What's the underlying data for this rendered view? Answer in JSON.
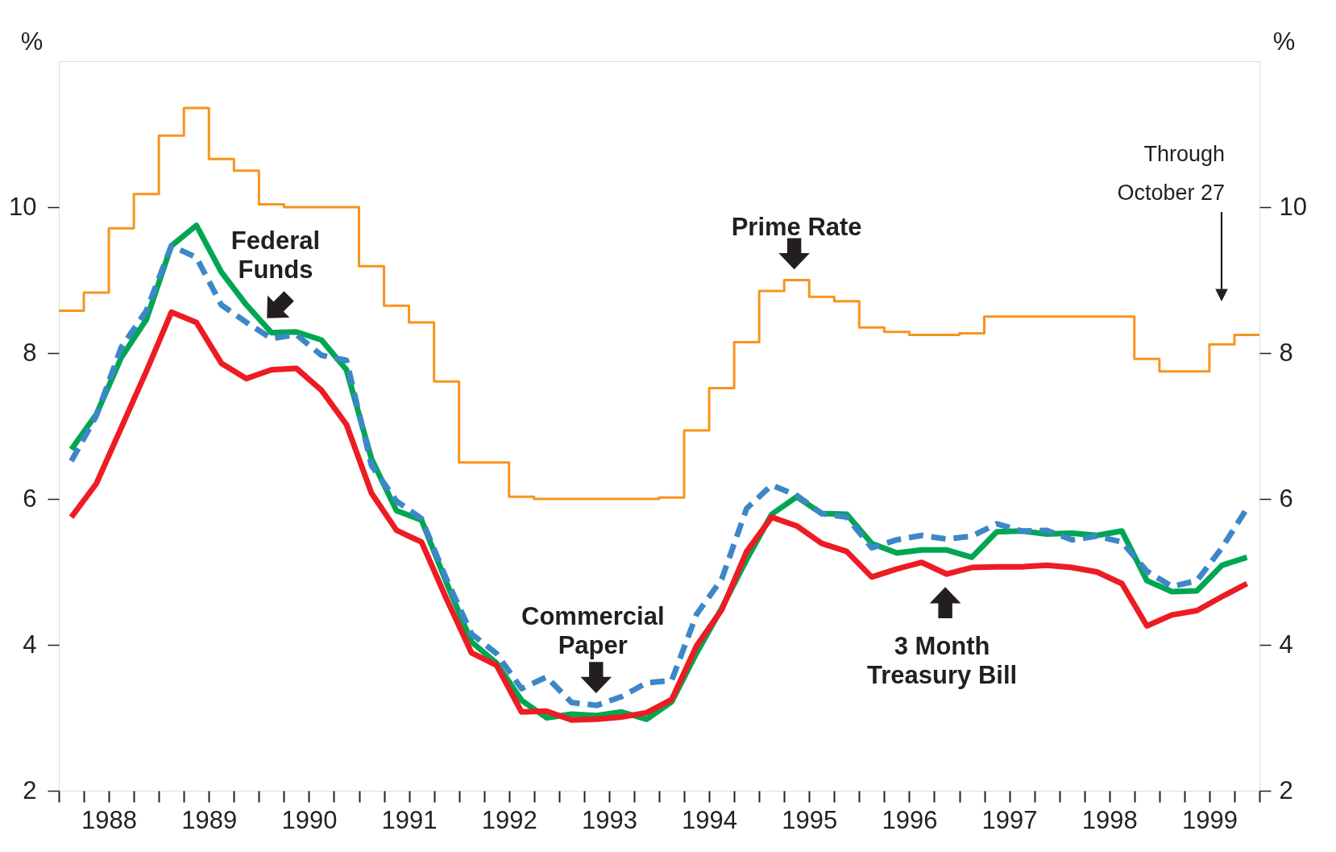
{
  "chart_data": {
    "type": "line",
    "x": [
      1988.125,
      1988.375,
      1988.625,
      1988.875,
      1989.125,
      1989.375,
      1989.625,
      1989.875,
      1990.125,
      1990.375,
      1990.625,
      1990.875,
      1991.125,
      1991.375,
      1991.625,
      1991.875,
      1992.125,
      1992.375,
      1992.625,
      1992.875,
      1993.125,
      1993.375,
      1993.625,
      1993.875,
      1994.125,
      1994.375,
      1994.625,
      1994.875,
      1995.125,
      1995.375,
      1995.625,
      1995.875,
      1996.125,
      1996.375,
      1996.625,
      1996.875,
      1997.125,
      1997.375,
      1997.625,
      1997.875,
      1998.125,
      1998.375,
      1998.625,
      1998.875,
      1999.125,
      1999.375,
      1999.625,
      1999.875
    ],
    "series": [
      {
        "type": "step",
        "color": "#f7941d",
        "x": [
          1988,
          1988.25,
          1988.5,
          1988.75,
          1989,
          1989.25,
          1989.5,
          1989.75,
          1990,
          1990.25,
          1990.5,
          1990.75,
          1991,
          1991.25,
          1991.5,
          1991.75,
          1992,
          1992.25,
          1992.5,
          1992.75,
          1993,
          1993.25,
          1993.5,
          1993.75,
          1994,
          1994.25,
          1994.5,
          1994.75,
          1995,
          1995.25,
          1995.5,
          1995.75,
          1996,
          1996.25,
          1996.5,
          1996.75,
          1997,
          1997.25,
          1997.5,
          1997.75,
          1998,
          1998.25,
          1998.5,
          1998.75,
          1999,
          1999.25,
          1999.5,
          1999.75,
          2000
        ],
        "values": [
          8.58,
          8.83,
          9.71,
          10.18,
          10.98,
          11.36,
          10.66,
          10.5,
          10.04,
          10.0,
          10.0,
          10.0,
          9.19,
          8.65,
          8.42,
          7.61,
          6.5,
          6.5,
          6.03,
          6.0,
          6.0,
          6.0,
          6.0,
          6.0,
          6.02,
          6.94,
          7.52,
          8.15,
          8.85,
          9.0,
          8.77,
          8.71,
          8.35,
          8.29,
          8.25,
          8.25,
          8.27,
          8.5,
          8.5,
          8.5,
          8.5,
          8.5,
          8.5,
          7.92,
          7.75,
          7.75,
          8.12,
          8.25,
          8.25
        ]
      },
      {
        "color": "#00a651",
        "values": [
          6.68,
          7.16,
          7.94,
          8.46,
          9.47,
          9.75,
          9.11,
          8.66,
          8.28,
          8.29,
          8.18,
          7.77,
          6.55,
          5.84,
          5.71,
          4.85,
          4.04,
          3.75,
          3.24,
          3.0,
          3.05,
          3.03,
          3.08,
          2.98,
          3.22,
          3.89,
          4.5,
          5.17,
          5.79,
          6.03,
          5.8,
          5.79,
          5.39,
          5.26,
          5.3,
          5.3,
          5.2,
          5.55,
          5.56,
          5.52,
          5.53,
          5.5,
          5.56,
          4.88,
          4.73,
          4.74,
          5.09,
          5.2
        ]
      },
      {
        "color": "#3c87c8",
        "line_style": "dashed",
        "values": [
          6.52,
          7.14,
          8.08,
          8.58,
          9.47,
          9.31,
          8.66,
          8.42,
          8.2,
          8.25,
          7.97,
          7.9,
          6.46,
          5.97,
          5.73,
          4.9,
          4.15,
          3.88,
          3.4,
          3.56,
          3.21,
          3.17,
          3.29,
          3.48,
          3.51,
          4.42,
          4.9,
          5.87,
          6.19,
          6.05,
          5.8,
          5.75,
          5.33,
          5.44,
          5.5,
          5.45,
          5.49,
          5.66,
          5.56,
          5.57,
          5.44,
          5.49,
          5.41,
          5.01,
          4.8,
          4.88,
          5.33,
          5.87
        ]
      },
      {
        "color": "#ed1c24",
        "values": [
          5.75,
          6.21,
          6.98,
          7.75,
          8.56,
          8.42,
          7.86,
          7.65,
          7.77,
          7.79,
          7.49,
          7.02,
          6.08,
          5.57,
          5.41,
          4.63,
          3.89,
          3.72,
          3.08,
          3.09,
          2.97,
          2.98,
          3.01,
          3.07,
          3.25,
          3.99,
          4.48,
          5.28,
          5.75,
          5.63,
          5.39,
          5.28,
          4.93,
          5.04,
          5.13,
          4.97,
          5.06,
          5.07,
          5.07,
          5.09,
          5.06,
          5.0,
          4.84,
          4.26,
          4.41,
          4.47,
          4.66,
          4.84
        ]
      }
    ],
    "xlim": [
      1988,
      2000
    ],
    "xticks": [
      {
        "value": 1988,
        "label": null
      },
      {
        "value": 1988.25,
        "label": null
      },
      {
        "value": 1988.5,
        "label": "1988"
      },
      {
        "value": 1988.75,
        "label": null
      },
      {
        "value": 1989,
        "label": null
      },
      {
        "value": 1989.25,
        "label": null
      },
      {
        "value": 1989.5,
        "label": "1989"
      },
      {
        "value": 1989.75,
        "label": null
      },
      {
        "value": 1990,
        "label": null
      },
      {
        "value": 1990.25,
        "label": null
      },
      {
        "value": 1990.5,
        "label": "1990"
      },
      {
        "value": 1990.75,
        "label": null
      },
      {
        "value": 1991,
        "label": null
      },
      {
        "value": 1991.25,
        "label": null
      },
      {
        "value": 1991.5,
        "label": "1991"
      },
      {
        "value": 1991.75,
        "label": null
      },
      {
        "value": 1992,
        "label": null
      },
      {
        "value": 1992.25,
        "label": null
      },
      {
        "value": 1992.5,
        "label": "1992"
      },
      {
        "value": 1992.75,
        "label": null
      },
      {
        "value": 1993,
        "label": null
      },
      {
        "value": 1993.25,
        "label": null
      },
      {
        "value": 1993.5,
        "label": "1993"
      },
      {
        "value": 1993.75,
        "label": null
      },
      {
        "value": 1994,
        "label": null
      },
      {
        "value": 1994.25,
        "label": null
      },
      {
        "value": 1994.5,
        "label": "1994"
      },
      {
        "value": 1994.75,
        "label": null
      },
      {
        "value": 1995,
        "label": null
      },
      {
        "value": 1995.25,
        "label": null
      },
      {
        "value": 1995.5,
        "label": "1995"
      },
      {
        "value": 1995.75,
        "label": null
      },
      {
        "value": 1996,
        "label": null
      },
      {
        "value": 1996.25,
        "label": null
      },
      {
        "value": 1996.5,
        "label": "1996"
      },
      {
        "value": 1996.75,
        "label": null
      },
      {
        "value": 1997,
        "label": null
      },
      {
        "value": 1997.25,
        "label": null
      },
      {
        "value": 1997.5,
        "label": "1997"
      },
      {
        "value": 1997.75,
        "label": null
      },
      {
        "value": 1998,
        "label": null
      },
      {
        "value": 1998.25,
        "label": null
      },
      {
        "value": 1998.5,
        "label": "1998"
      },
      {
        "value": 1998.75,
        "label": null
      },
      {
        "value": 1999,
        "label": null
      },
      {
        "value": 1999.25,
        "label": null
      },
      {
        "value": 1999.5,
        "label": "1999"
      },
      {
        "value": 1999.75,
        "label": null
      },
      {
        "value": 2000,
        "label": null
      }
    ],
    "ylim": [
      2,
      12
    ],
    "yticks": [
      2,
      4,
      6,
      8,
      10
    ],
    "ylabel": "%",
    "y2lim": [
      2,
      12
    ],
    "y2ticks": [
      2,
      4,
      6,
      8,
      10
    ],
    "y2label": "%",
    "grid": false,
    "marker": "none",
    "annotations": [
      "Federal\nFunds",
      {
        "text": "Commercial\nPaper",
        "x": 1993.37,
        "y": 3.55
      },
      {
        "text": "Prime Rate",
        "x": 1995.35,
        "y": 9.36
      },
      {
        "text": "3 Month\nTreasury Bill",
        "x": 1996.86,
        "y": 4.58
      },
      "Through\nOctober 27"
    ]
  }
}
